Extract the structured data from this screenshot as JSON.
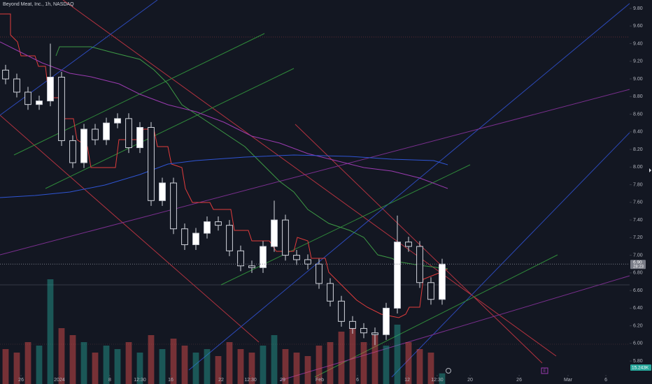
{
  "chart_data": {
    "type": "candlestick",
    "title": "Beyond Meat, Inc., 1h, NASDAQ",
    "open": [
      9.1,
      9.0,
      8.85,
      8.71,
      8.75,
      9.02,
      8.3,
      8.05,
      8.43,
      8.31,
      8.5,
      8.55,
      8.22,
      8.45,
      7.62,
      7.82,
      7.3,
      7.12,
      7.25,
      7.38,
      7.34,
      7.05,
      6.88,
      6.86,
      7.1,
      7.4,
      7.0,
      6.95,
      6.9,
      6.68,
      6.48,
      6.25,
      6.17,
      6.12,
      6.1,
      6.4,
      7.15,
      7.1,
      6.69,
      6.5
    ],
    "high": [
      9.16,
      9.06,
      8.91,
      8.81,
      9.4,
      9.08,
      8.36,
      8.49,
      8.49,
      8.56,
      8.61,
      8.61,
      8.51,
      8.51,
      7.88,
      7.88,
      7.36,
      7.31,
      7.44,
      7.44,
      7.4,
      7.11,
      6.94,
      7.16,
      7.62,
      7.46,
      7.06,
      7.01,
      6.96,
      6.74,
      6.54,
      6.31,
      6.23,
      6.18,
      6.46,
      7.45,
      7.21,
      7.16,
      6.75,
      6.96
    ],
    "low": [
      8.94,
      8.79,
      8.65,
      8.65,
      8.69,
      8.24,
      7.99,
      7.99,
      8.25,
      8.25,
      8.44,
      8.16,
      8.16,
      7.56,
      7.56,
      7.24,
      7.06,
      7.06,
      7.19,
      7.28,
      6.99,
      6.82,
      6.8,
      6.8,
      7.04,
      6.94,
      6.89,
      6.84,
      6.62,
      6.42,
      6.19,
      6.11,
      6.06,
      5.98,
      6.04,
      6.34,
      7.04,
      6.63,
      6.44,
      6.44
    ],
    "close": [
      9.0,
      8.85,
      8.71,
      8.75,
      9.02,
      8.3,
      8.05,
      8.43,
      8.31,
      8.5,
      8.55,
      8.22,
      8.45,
      7.62,
      7.82,
      7.3,
      7.12,
      7.25,
      7.38,
      7.34,
      7.05,
      6.88,
      6.86,
      7.1,
      7.4,
      7.0,
      6.95,
      6.9,
      6.68,
      6.48,
      6.25,
      6.17,
      6.12,
      6.1,
      6.4,
      7.15,
      7.1,
      6.69,
      6.5,
      6.9
    ],
    "volumes": [
      50,
      45,
      60,
      55,
      150,
      80,
      70,
      60,
      45,
      55,
      50,
      60,
      45,
      70,
      50,
      65,
      55,
      45,
      50,
      40,
      60,
      50,
      45,
      55,
      70,
      50,
      45,
      40,
      55,
      60,
      75,
      90,
      60,
      70,
      55,
      85,
      60,
      50,
      45,
      15.243
    ],
    "volume_label": "15.243K",
    "vlim": [
      0,
      200
    ],
    "up_color": "#26a69a",
    "down_color": "#ef5350",
    "last_price_label": "6.90",
    "countdown": "28:23",
    "xlim": [
      -0.5,
      55.75
    ],
    "xticks": [
      {
        "value": 1.38,
        "label": "26"
      },
      {
        "value": 4.81,
        "label": "2024"
      },
      {
        "value": 9.31,
        "label": "8"
      },
      {
        "value": 12,
        "label": "12:30"
      },
      {
        "value": 14.75,
        "label": "16"
      },
      {
        "value": 19.25,
        "label": "22"
      },
      {
        "value": 21.88,
        "label": "12:30"
      },
      {
        "value": 24.75,
        "label": "29"
      },
      {
        "value": 28.06,
        "label": "Feb"
      },
      {
        "value": 31.44,
        "label": "6"
      },
      {
        "value": 35.88,
        "label": "12"
      },
      {
        "value": 38.56,
        "label": "12:30"
      },
      {
        "value": 41.5,
        "label": "20"
      },
      {
        "value": 45.88,
        "label": "26"
      },
      {
        "value": 50.25,
        "label": "Mar"
      },
      {
        "value": 53.63,
        "label": "6"
      }
    ],
    "ylim": [
      5.54,
      9.895
    ],
    "yticks": [
      {
        "value": 5.8,
        "label": "5.80"
      },
      {
        "value": 6.0,
        "label": "6.00"
      },
      {
        "value": 6.2,
        "label": "6.20"
      },
      {
        "value": 6.4,
        "label": "6.40"
      },
      {
        "value": 6.6,
        "label": "6.60"
      },
      {
        "value": 6.8,
        "label": "6.80"
      },
      {
        "value": 7.0,
        "label": "7.00"
      },
      {
        "value": 7.2,
        "label": "7.20"
      },
      {
        "value": 7.4,
        "label": "7.40"
      },
      {
        "value": 7.6,
        "label": "7.60"
      },
      {
        "value": 7.8,
        "label": "7.80"
      },
      {
        "value": 8.0,
        "label": "8.00"
      },
      {
        "value": 8.2,
        "label": "8.20"
      },
      {
        "value": 8.4,
        "label": "8.40"
      },
      {
        "value": 8.6,
        "label": "8.60"
      },
      {
        "value": 8.8,
        "label": "8.80"
      },
      {
        "value": 9.0,
        "label": "9.00"
      },
      {
        "value": 9.2,
        "label": "9.20"
      },
      {
        "value": 9.4,
        "label": "9.40"
      },
      {
        "value": 9.6,
        "label": "9.60"
      },
      {
        "value": 9.8,
        "label": "9.80"
      }
    ]
  }
}
